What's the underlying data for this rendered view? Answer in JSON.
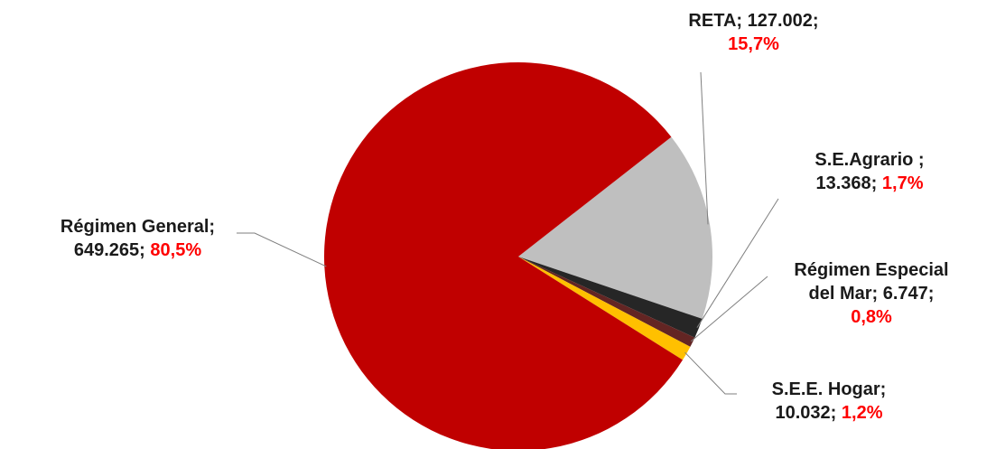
{
  "chart_data": {
    "type": "pie",
    "title": "",
    "legend": "none",
    "slices": [
      {
        "name": "RETA",
        "value": 127002,
        "value_text": "127.002",
        "percent_text": "15,7%",
        "color": "#bfbfbf"
      },
      {
        "name": "S.E.Agrario",
        "value": 13368,
        "value_text": "13.368",
        "percent_text": "1,7%",
        "color": "#262626"
      },
      {
        "name": "Régimen Especial del Mar",
        "value": 6747,
        "value_text": "6.747",
        "percent_text": "0,8%",
        "color": "#632523"
      },
      {
        "name": "S.E.E. Hogar",
        "value": 10032,
        "value_text": "10.032",
        "percent_text": "1,2%",
        "color": "#ffc000"
      },
      {
        "name": "Régimen General",
        "value": 649265,
        "value_text": "649.265",
        "percent_text": "80,5%",
        "color": "#c00000"
      }
    ],
    "labels": {
      "reta": {
        "line1": "RETA; 127.002;",
        "percent": "15,7%"
      },
      "agrario": {
        "line1": "S.E.Agrario ;",
        "line2_value": "13.368;",
        "percent": "1,7%"
      },
      "mar": {
        "line1": "Régimen Especial",
        "line2": "del Mar; 6.747;",
        "percent": "0,8%"
      },
      "hogar": {
        "line1": "S.E.E. Hogar;",
        "line2_value": "10.032;",
        "percent": "1,2%"
      },
      "general": {
        "line1": "Régimen General;",
        "line2_value": "649.265;",
        "percent": "80,5%"
      }
    },
    "label_color": "#1a1a1a",
    "percent_color": "#ff0000",
    "leader_color": "#7f7f7f"
  }
}
